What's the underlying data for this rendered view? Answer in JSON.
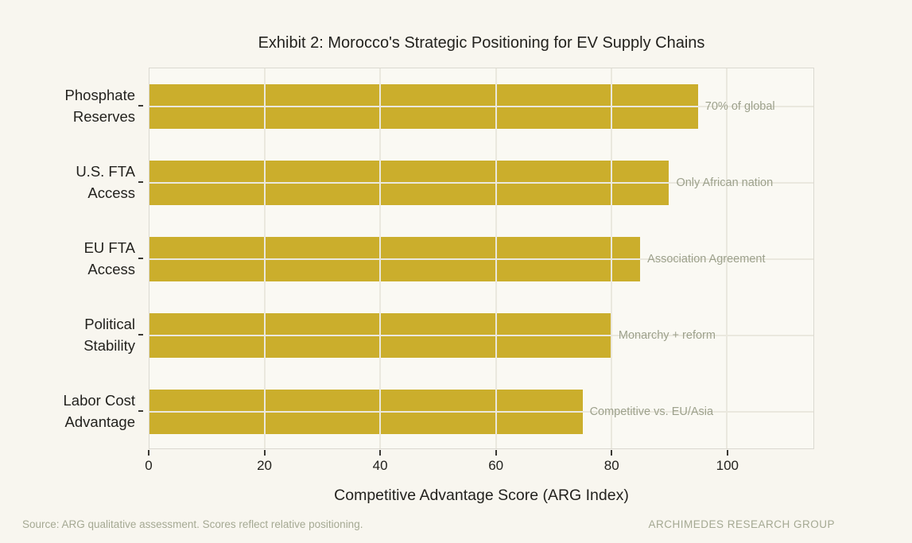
{
  "title": "Exhibit 2: Morocco's Strategic Positioning for EV Supply Chains",
  "chart_data": {
    "type": "bar",
    "orientation": "horizontal",
    "title": "Exhibit 2: Morocco's Strategic Positioning for EV Supply Chains",
    "categories": [
      "Phosphate\nReserves",
      "U.S. FTA\nAccess",
      "EU FTA\nAccess",
      "Political\nStability",
      "Labor Cost\nAdvantage"
    ],
    "values": [
      95,
      90,
      85,
      80,
      75
    ],
    "bar_annotations": [
      "70% of global",
      "Only African nation",
      "Association Agreement",
      "Monarchy + reform",
      "Competitive vs. EU/Asia"
    ],
    "xlabel": "Competitive Advantage Score (ARG Index)",
    "ylabel": "",
    "xlim": [
      0,
      115
    ],
    "xticks": [
      0,
      20,
      40,
      60,
      80,
      100
    ],
    "grid": true,
    "legend": null,
    "bar_color": "#CBAE2C"
  },
  "footer": {
    "source": "Source: ARG qualitative assessment. Scores reflect relative positioning.",
    "brand": "ARCHIMEDES RESEARCH GROUP"
  },
  "colors": {
    "page_background": "#F8F6EF",
    "plot_background": "#FAF9F3",
    "bar": "#CBAE2C",
    "gridline": "#EAE8DE",
    "spine": "#DBD9D1",
    "text_dark": "#23221E",
    "text_muted": "#9DA18C",
    "footer_text": "#A5A993"
  }
}
